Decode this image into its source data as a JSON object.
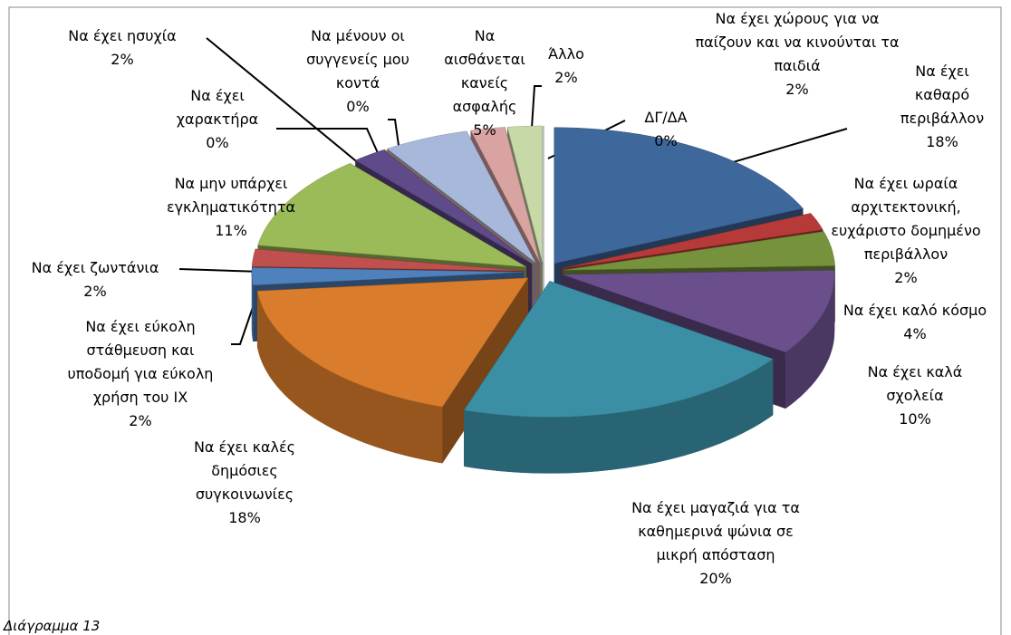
{
  "chart_data": {
    "type": "pie3d",
    "caption": "Διάγραμμα 13",
    "categories": [
      "Να έχει καθαρό περιβάλλον",
      "Να έχει ωραία αρχιτεκτονική, ευχάριστο δομημένο περιβάλλον",
      "Να έχει καλό κόσμο",
      "Να έχει καλά σχολεία",
      "Να έχει μαγαζιά για τα καθημερινά ψώνια σε μικρή απόσταση",
      "Να έχει καλές δημόσιες συγκοινωνίες",
      "Να έχει εύκολη στάθμευση και υποδομή για εύκολη χρήση του ΙΧ",
      "Να έχει ζωντάνια",
      "Να μην υπάρχει εγκληματικότητα",
      "Να έχει ησυχία",
      "Να έχει χαρακτήρα",
      "Να μένουν οι συγγενείς μου κοντά",
      "Να αισθάνεται κανείς ασφαλής",
      "Να έχει χώρους για να παίζουν και να κινούνται τα παιδιά",
      "Άλλο",
      "ΔΓ/ΔΑ"
    ],
    "values": [
      18,
      2,
      4,
      10,
      20,
      18,
      2,
      2,
      11,
      2,
      0,
      0,
      5,
      2,
      2,
      0
    ],
    "value_labels": [
      "18%",
      "2%",
      "4%",
      "10%",
      "20%",
      "18%",
      "2%",
      "2%",
      "11%",
      "2%",
      "0%",
      "0%",
      "5%",
      "2%",
      "2%",
      "0%"
    ],
    "colors": [
      "#3e679c",
      "#b63a37",
      "#76923c",
      "#6a4f8c",
      "#3a8fa5",
      "#d97c2b",
      "#4f81bd",
      "#c0504d",
      "#9bbb59",
      "#5f4a8a",
      "#31b3cc",
      "#f79646",
      "#a7b8da",
      "#d9a3a2",
      "#c6d9a6",
      "#b8acd0"
    ]
  }
}
